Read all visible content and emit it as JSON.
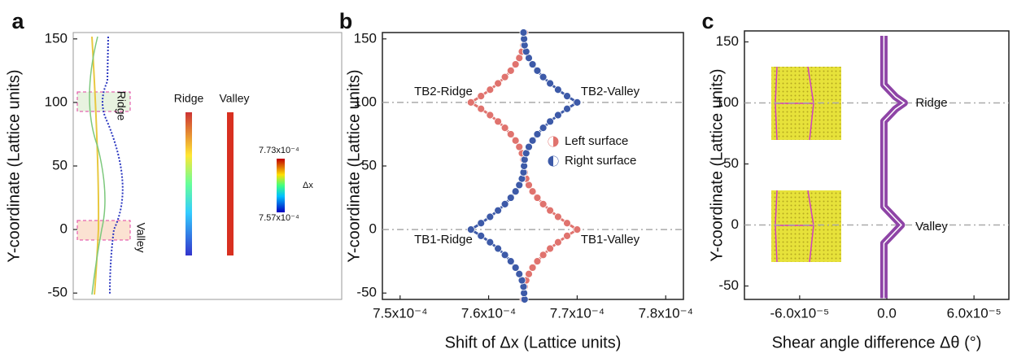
{
  "chart_data": [
    {
      "type": "illustration",
      "panel": "a",
      "y_label": "Y-coordinate (Lattice units)",
      "ylim": [
        -55,
        155
      ],
      "yticks": [
        -50,
        0,
        50,
        100,
        150
      ],
      "annotations": [
        "Ridge",
        "Valley",
        "Ridge",
        "Valley",
        "7.73x10⁻⁴",
        "Δx",
        "7.57x10⁻⁴"
      ]
    },
    {
      "type": "scatter",
      "panel": "b",
      "x_label": "Shift of Δx (Lattice units)",
      "y_label": "Y-coordinate (Lattice units)",
      "xlim": [
        0.000748,
        0.000782
      ],
      "ylim": [
        -55,
        155
      ],
      "xticks": [
        {
          "value": 0.00075,
          "label": "7.5x10⁻⁴"
        },
        {
          "value": 0.00076,
          "label": "7.6x10⁻⁴"
        },
        {
          "value": 0.00077,
          "label": "7.7x10⁻⁴"
        },
        {
          "value": 0.00078,
          "label": "7.8x10⁻⁴"
        }
      ],
      "yticks": [
        -50,
        0,
        50,
        100,
        150
      ],
      "hlines": [
        0,
        100
      ],
      "annotations": [
        "TB2-Ridge",
        "TB2-Valley",
        "TB1-Ridge",
        "TB1-Valley"
      ],
      "legend": "center right",
      "y": [
        -55,
        -50,
        -45,
        -40,
        -35,
        -30,
        -25,
        -20,
        -15,
        -10,
        -5,
        0,
        5,
        10,
        15,
        20,
        25,
        30,
        35,
        40,
        45,
        50,
        55,
        60,
        65,
        70,
        75,
        80,
        85,
        90,
        95,
        100,
        105,
        110,
        115,
        120,
        125,
        130,
        135,
        140,
        145,
        150,
        155
      ],
      "series": [
        {
          "name": "Left surface",
          "color": "#e0736e",
          "values": [
            0.00076394,
            0.000764,
            0.00076406,
            0.00076424,
            0.00076454,
            0.00076496,
            0.0007655,
            0.00076616,
            0.00076694,
            0.00076784,
            0.00076886,
            0.00077,
            0.00076886,
            0.00076784,
            0.00076694,
            0.00076616,
            0.0007655,
            0.00076496,
            0.00076454,
            0.00076424,
            0.00076406,
            0.000764,
            0.00076394,
            0.00076376,
            0.00076346,
            0.00076304,
            0.0007625,
            0.00076184,
            0.00076106,
            0.00076016,
            0.00075914,
            0.000758,
            0.00075914,
            0.00076016,
            0.00076106,
            0.00076184,
            0.0007625,
            0.00076304,
            0.00076346,
            0.00076376,
            0.00076394,
            0.000764,
            0.00076406
          ]
        },
        {
          "name": "Right surface",
          "color": "#3d5aa8",
          "values": [
            0.00076406,
            0.000764,
            0.00076394,
            0.00076376,
            0.00076346,
            0.00076304,
            0.0007625,
            0.00076184,
            0.00076106,
            0.00076016,
            0.00075914,
            0.000758,
            0.00075914,
            0.00076016,
            0.00076106,
            0.00076184,
            0.0007625,
            0.00076304,
            0.00076346,
            0.00076376,
            0.00076394,
            0.000764,
            0.00076406,
            0.00076424,
            0.00076454,
            0.00076496,
            0.0007655,
            0.00076616,
            0.00076694,
            0.00076784,
            0.00076886,
            0.00077,
            0.00076886,
            0.00076784,
            0.00076694,
            0.00076616,
            0.0007655,
            0.00076496,
            0.00076454,
            0.00076424,
            0.00076406,
            0.000764,
            0.00076394
          ]
        }
      ]
    },
    {
      "type": "line",
      "panel": "c",
      "x_label": "Shear angle difference Δθ (°)",
      "y_label": "Y-coordinate (Lattice units)",
      "xlim": [
        -9.8e-05,
        8.4e-05
      ],
      "ylim": [
        -61,
        159
      ],
      "xticks": [
        {
          "value": -6e-05,
          "label": "-6.0x10⁻⁵"
        },
        {
          "value": 0,
          "label": "0.0"
        },
        {
          "value": 6e-05,
          "label": "6.0x10⁻⁵"
        }
      ],
      "yticks": [
        -50,
        0,
        50,
        100,
        150
      ],
      "hlines": [
        0,
        100
      ],
      "annotations": [
        "Ridge",
        "Valley"
      ],
      "y": [
        -60,
        -55,
        -50,
        -45,
        -40,
        -35,
        -30,
        -25,
        -20,
        -15,
        -10,
        -5,
        0,
        5,
        10,
        15,
        20,
        25,
        30,
        35,
        40,
        45,
        50,
        55,
        60,
        65,
        70,
        75,
        80,
        85,
        90,
        95,
        100,
        105,
        110,
        115,
        120,
        125,
        130,
        135,
        140,
        145,
        150,
        155
      ],
      "series": [
        {
          "color": "#8e44a6",
          "values": [
            -2e-06,
            -2e-06,
            -2e-06,
            -2e-06,
            -2e-06,
            -2e-06,
            -2e-06,
            -2e-06,
            -2e-06,
            -2e-06,
            2e-06,
            6e-06,
            1e-05,
            6e-06,
            2e-06,
            -2e-06,
            -2e-06,
            -2e-06,
            -2e-06,
            -2e-06,
            -2e-06,
            -2e-06,
            -2e-06,
            -2e-06,
            -2e-06,
            -2e-06,
            -2e-06,
            -2e-06,
            -2e-06,
            -2e-06,
            2e-06,
            6e-06,
            1.2e-05,
            6e-06,
            2e-06,
            -2e-06,
            -2e-06,
            -2e-06,
            -2e-06,
            -2e-06,
            -2e-06,
            -2e-06,
            -2e-06,
            -2e-06
          ]
        }
      ]
    }
  ]
}
